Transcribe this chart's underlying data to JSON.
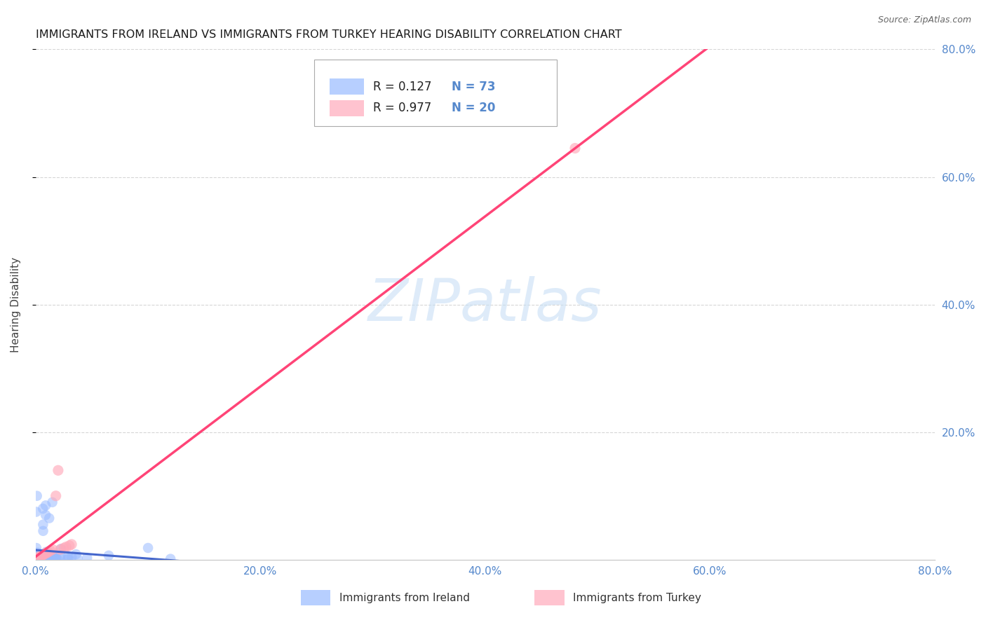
{
  "title": "IMMIGRANTS FROM IRELAND VS IMMIGRANTS FROM TURKEY HEARING DISABILITY CORRELATION CHART",
  "source": "Source: ZipAtlas.com",
  "ylabel": "Hearing Disability",
  "xlim": [
    0,
    0.8
  ],
  "ylim": [
    0,
    0.8
  ],
  "xtick_labels": [
    "0.0%",
    "20.0%",
    "40.0%",
    "60.0%",
    "80.0%"
  ],
  "xtick_vals": [
    0.0,
    0.2,
    0.4,
    0.6,
    0.8
  ],
  "ytick_vals": [
    0.2,
    0.4,
    0.6,
    0.8
  ],
  "ytick_labels": [
    "20.0%",
    "40.0%",
    "60.0%",
    "80.0%"
  ],
  "ireland_color": "#99bbff",
  "ireland_line_color": "#4466cc",
  "turkey_color": "#ffaabb",
  "turkey_line_color": "#ff4477",
  "ireland_R": 0.127,
  "ireland_N": 73,
  "turkey_R": 0.977,
  "turkey_N": 20,
  "watermark_text": "ZIPatlas",
  "watermark_color": "#c8dff5",
  "background_color": "#ffffff",
  "grid_color": "#cccccc",
  "tick_label_color": "#5588cc",
  "title_fontsize": 11.5,
  "axis_label_fontsize": 11,
  "legend_fontsize": 12,
  "source_fontsize": 9
}
